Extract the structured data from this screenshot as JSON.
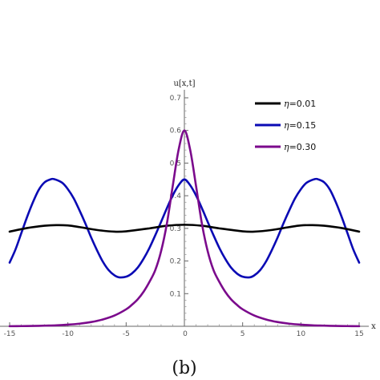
{
  "chart_data": {
    "type": "line",
    "xlabel": "x",
    "ylabel": "u[x,t]",
    "xlim": [
      -15,
      15
    ],
    "ylim": [
      0,
      0.7
    ],
    "xticks": [
      -15,
      -10,
      -5,
      0,
      5,
      10,
      15
    ],
    "xtick_labels": [
      "-15",
      "-10",
      "-5",
      "0",
      "5",
      "10",
      "15"
    ],
    "yticks": [
      0.1,
      0.2,
      0.3,
      0.4,
      0.5,
      0.6,
      0.7
    ],
    "ytick_labels": [
      "0.1",
      "0.2",
      "0.3",
      "0.4",
      "0.5",
      "0.6",
      "0.7"
    ],
    "grid": false,
    "legend_position": "top-right",
    "caption": "(b)",
    "series": [
      {
        "name": "η=0.01",
        "eta_symbol": "η",
        "eta_value": "=0.01",
        "color": "#000000",
        "x": [
          -15,
          -13.5,
          -12,
          -11,
          -10,
          -9,
          -7.5,
          -6,
          -5,
          -3,
          -1.5,
          0,
          1.5,
          3,
          5,
          6,
          7.5,
          9,
          10,
          11,
          12,
          13.5,
          15
        ],
        "y": [
          0.29,
          0.301,
          0.308,
          0.31,
          0.309,
          0.304,
          0.295,
          0.29,
          0.291,
          0.3,
          0.308,
          0.311,
          0.308,
          0.3,
          0.291,
          0.29,
          0.295,
          0.304,
          0.309,
          0.31,
          0.308,
          0.301,
          0.29
        ]
      },
      {
        "name": "η=0.15",
        "eta_symbol": "η",
        "eta_value": "=0.15",
        "color": "#0a0ab4",
        "x": [
          -15,
          -14.5,
          -14,
          -13.5,
          -13,
          -12.5,
          -12,
          -11.5,
          -11.2,
          -10.5,
          -10,
          -9.5,
          -9,
          -8.5,
          -8,
          -7.5,
          -7,
          -6.5,
          -6,
          -5.6,
          -5,
          -4.5,
          -4,
          -3.5,
          -3,
          -2.5,
          -2,
          -1.5,
          -1,
          -0.5,
          0,
          0.5,
          1,
          1.5,
          2,
          2.5,
          3,
          3.5,
          4,
          4.5,
          5,
          5.6,
          6,
          6.5,
          7,
          7.5,
          8,
          8.5,
          9,
          9.5,
          10,
          10.5,
          11.2,
          11.5,
          12,
          12.5,
          13,
          13.5,
          14,
          14.5,
          15
        ],
        "y": [
          0.195,
          0.235,
          0.285,
          0.335,
          0.38,
          0.418,
          0.441,
          0.45,
          0.451,
          0.44,
          0.42,
          0.392,
          0.355,
          0.315,
          0.272,
          0.233,
          0.198,
          0.172,
          0.156,
          0.15,
          0.152,
          0.162,
          0.18,
          0.207,
          0.24,
          0.279,
          0.32,
          0.362,
          0.401,
          0.432,
          0.45,
          0.432,
          0.401,
          0.362,
          0.32,
          0.279,
          0.24,
          0.207,
          0.18,
          0.162,
          0.152,
          0.15,
          0.156,
          0.172,
          0.198,
          0.233,
          0.272,
          0.315,
          0.355,
          0.392,
          0.42,
          0.44,
          0.451,
          0.45,
          0.441,
          0.418,
          0.38,
          0.335,
          0.285,
          0.235,
          0.195
        ]
      },
      {
        "name": "η=0.30",
        "eta_symbol": "η",
        "eta_value": "=0.30",
        "color": "#7b0a8c",
        "x": [
          -15,
          -14,
          -13,
          -12,
          -11,
          -10,
          -9,
          -8,
          -7,
          -6,
          -5,
          -4.5,
          -4,
          -3.5,
          -3,
          -2.5,
          -2,
          -1.5,
          -1,
          -0.5,
          0,
          0.5,
          1,
          1.5,
          2,
          2.5,
          3,
          3.5,
          4,
          4.5,
          5,
          6,
          7,
          8,
          9,
          10,
          11,
          12,
          13,
          14,
          15
        ],
        "y": [
          0.0003,
          0.0006,
          0.001,
          0.002,
          0.003,
          0.005,
          0.008,
          0.013,
          0.021,
          0.033,
          0.052,
          0.066,
          0.083,
          0.106,
          0.136,
          0.172,
          0.23,
          0.315,
          0.43,
          0.54,
          0.6,
          0.54,
          0.43,
          0.315,
          0.23,
          0.172,
          0.136,
          0.106,
          0.083,
          0.066,
          0.052,
          0.033,
          0.021,
          0.013,
          0.008,
          0.005,
          0.003,
          0.002,
          0.001,
          0.0006,
          0.0003
        ]
      }
    ]
  }
}
